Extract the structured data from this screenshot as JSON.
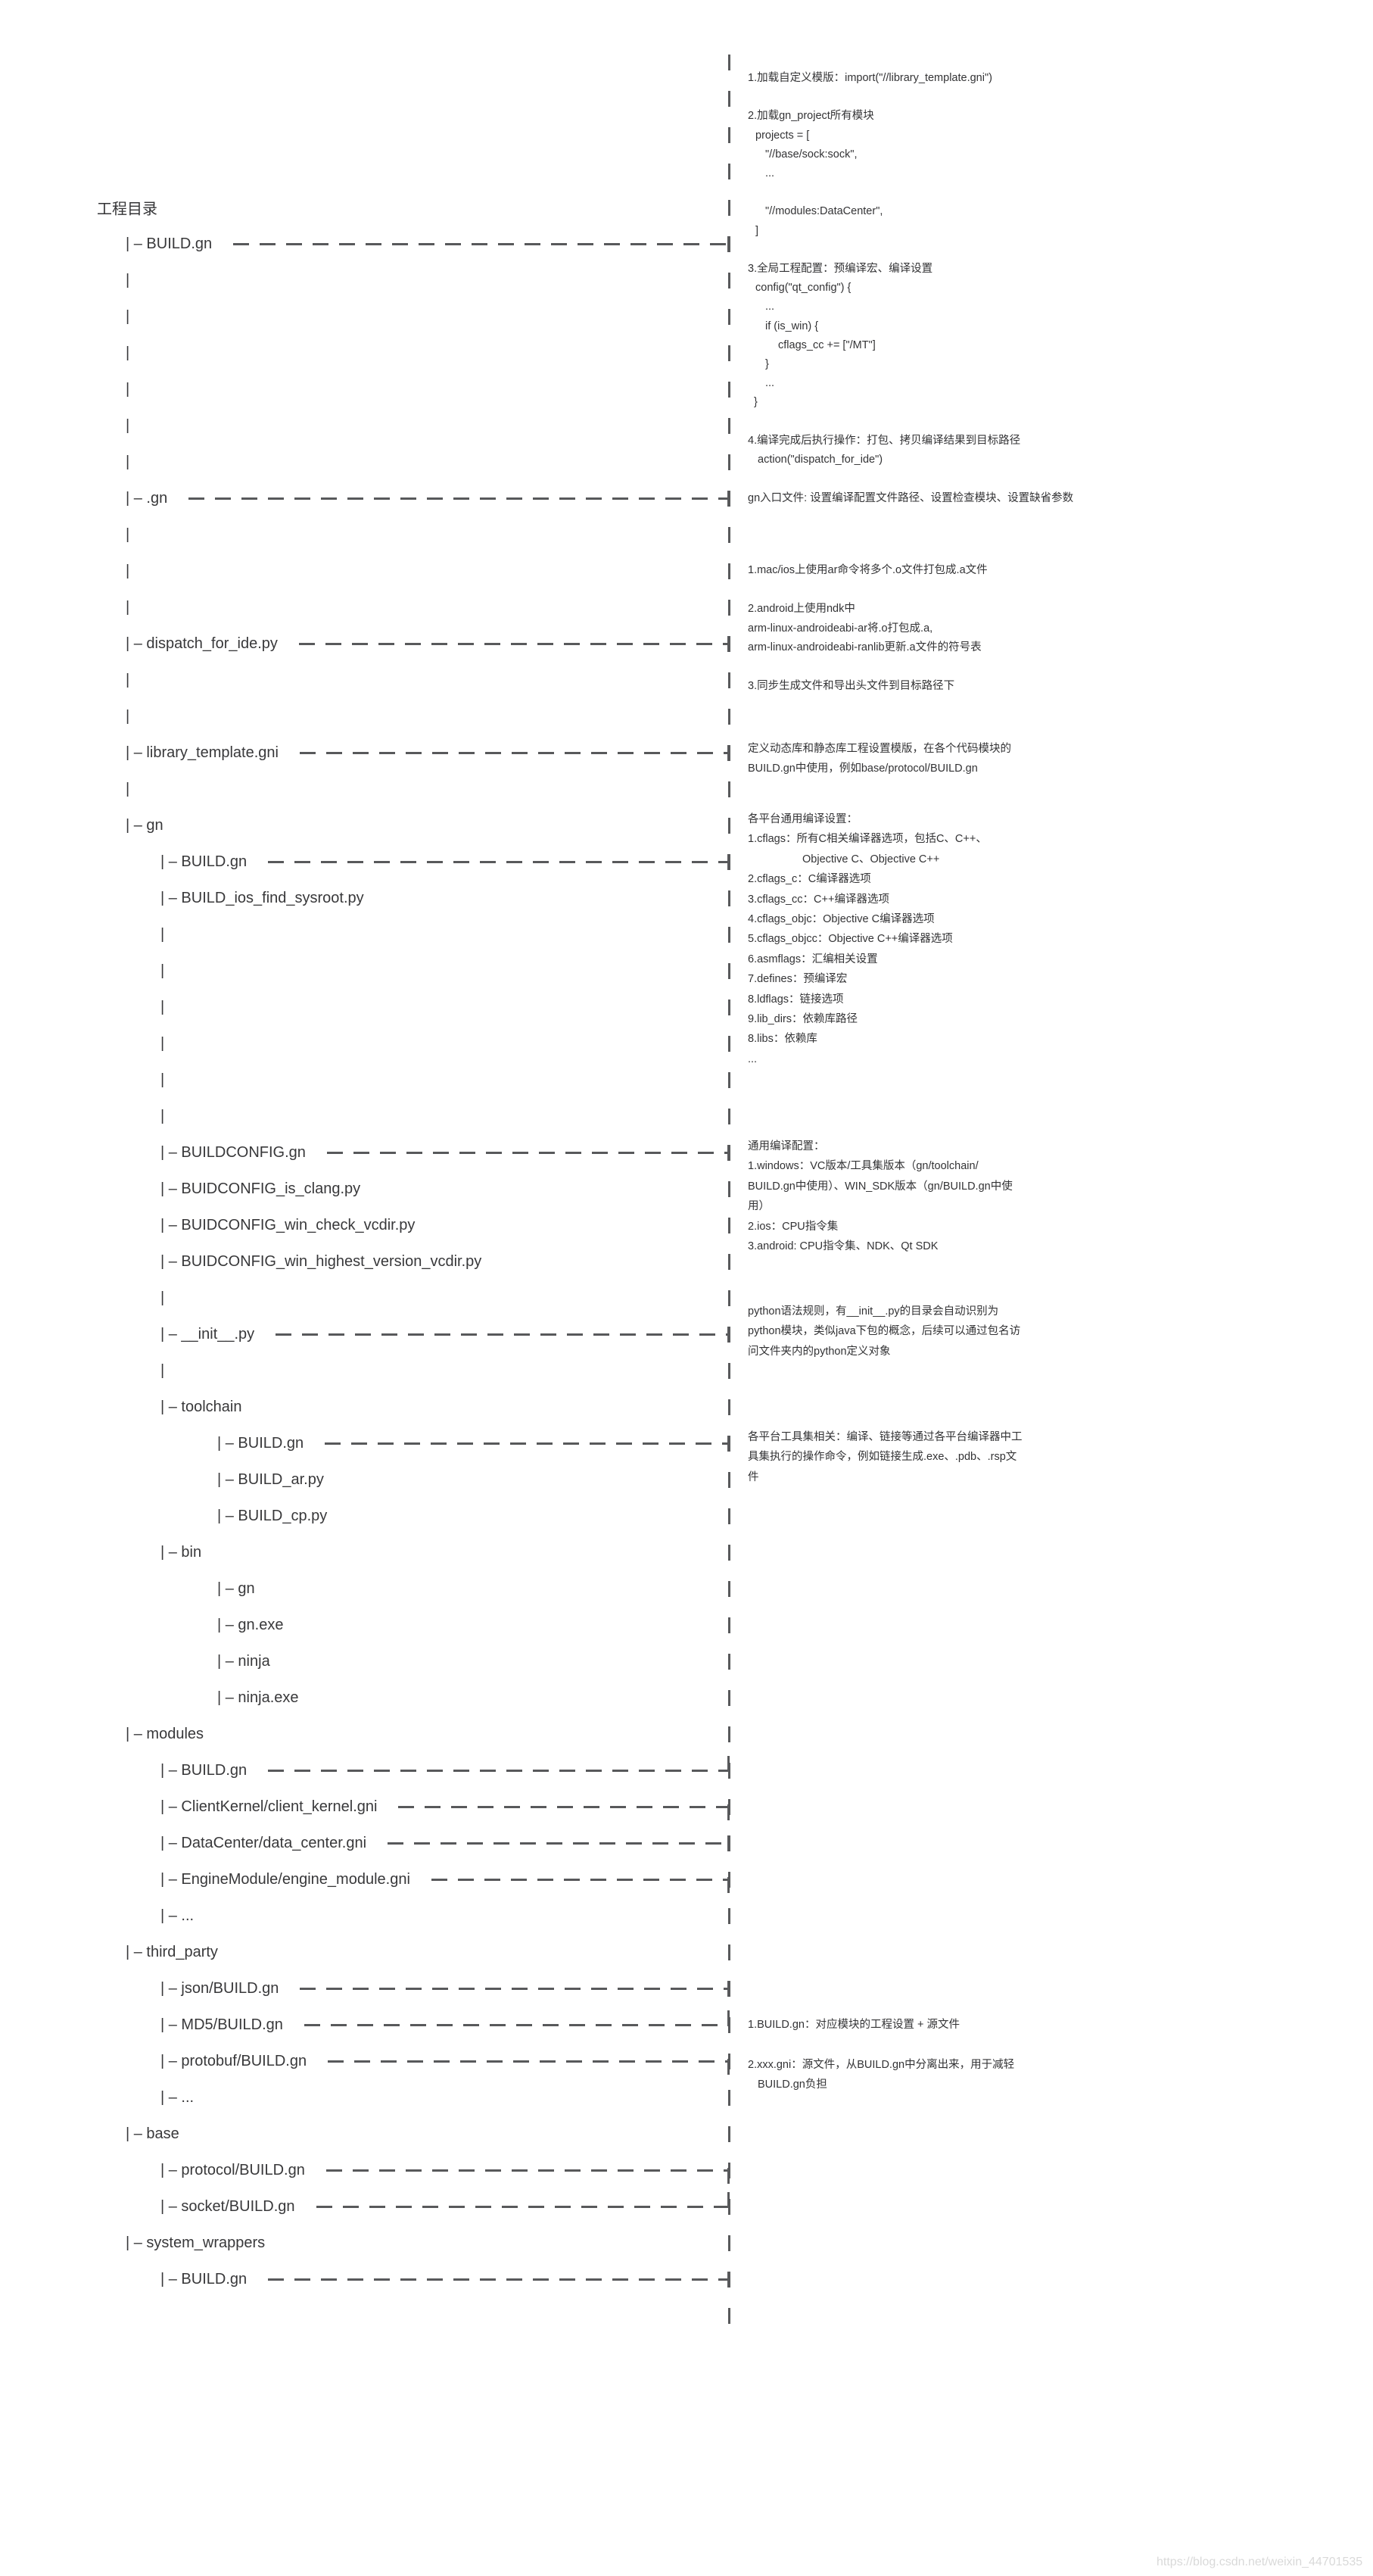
{
  "page": {
    "background": "#ffffff"
  },
  "colors": {
    "text": "#333335",
    "tree_text": "#38383a",
    "dash": "#58595b",
    "watermark": "#d9d9d9"
  },
  "watermark": {
    "text": "https://blog.csdn.net/weixin_44701535"
  },
  "tree": {
    "title": "工程目录",
    "rows": [
      {
        "kind": "title",
        "level": 0,
        "label": "工程目录"
      },
      {
        "kind": "item",
        "level": 1,
        "label": "BUILD.gn",
        "dash": true,
        "tick": "cross"
      },
      {
        "kind": "pipe",
        "level": 1
      },
      {
        "kind": "pipe",
        "level": 1
      },
      {
        "kind": "pipe",
        "level": 1
      },
      {
        "kind": "pipe",
        "level": 1
      },
      {
        "kind": "pipe",
        "level": 1
      },
      {
        "kind": "pipe",
        "level": 1
      },
      {
        "kind": "item",
        "level": 1,
        "label": ".gn",
        "dash": true,
        "tick": "cross"
      },
      {
        "kind": "pipe",
        "level": 1
      },
      {
        "kind": "pipe",
        "level": 1
      },
      {
        "kind": "pipe",
        "level": 1
      },
      {
        "kind": "item",
        "level": 1,
        "label": "dispatch_for_ide.py",
        "dash": true,
        "tick": "cross"
      },
      {
        "kind": "pipe",
        "level": 1
      },
      {
        "kind": "pipe",
        "level": 1
      },
      {
        "kind": "item",
        "level": 1,
        "label": "library_template.gni",
        "dash": true,
        "tick": "cross"
      },
      {
        "kind": "pipe",
        "level": 1
      },
      {
        "kind": "item",
        "level": 1,
        "label": "gn",
        "dash": false
      },
      {
        "kind": "item",
        "level": 2,
        "label": "BUILD.gn",
        "dash": true,
        "tick": "cross"
      },
      {
        "kind": "item",
        "level": 2,
        "label": "BUILD_ios_find_sysroot.py",
        "dash": false
      },
      {
        "kind": "pipe",
        "level": 2
      },
      {
        "kind": "pipe",
        "level": 2
      },
      {
        "kind": "pipe",
        "level": 2
      },
      {
        "kind": "pipe",
        "level": 2
      },
      {
        "kind": "pipe",
        "level": 2
      },
      {
        "kind": "pipe",
        "level": 2
      },
      {
        "kind": "item",
        "level": 2,
        "label": "BUILDCONFIG.gn",
        "dash": true,
        "tick": "cross"
      },
      {
        "kind": "item",
        "level": 2,
        "label": "BUIDCONFIG_is_clang.py",
        "dash": false
      },
      {
        "kind": "item",
        "level": 2,
        "label": "BUIDCONFIG_win_check_vcdir.py",
        "dash": false
      },
      {
        "kind": "item",
        "level": 2,
        "label": "BUIDCONFIG_win_highest_version_vcdir.py",
        "dash": false
      },
      {
        "kind": "pipe",
        "level": 2
      },
      {
        "kind": "item",
        "level": 2,
        "label": "__init__.py",
        "dash": true,
        "tick": "cross"
      },
      {
        "kind": "pipe",
        "level": 2
      },
      {
        "kind": "item",
        "level": 2,
        "label": "toolchain",
        "dash": false
      },
      {
        "kind": "item",
        "level": 3,
        "label": "BUILD.gn",
        "dash": true,
        "tick": "cross"
      },
      {
        "kind": "item",
        "level": 3,
        "label": "BUILD_ar.py",
        "dash": false
      },
      {
        "kind": "item",
        "level": 3,
        "label": "BUILD_cp.py",
        "dash": false
      },
      {
        "kind": "item",
        "level": 2,
        "label": "bin",
        "dash": false
      },
      {
        "kind": "item",
        "level": 3,
        "label": "gn",
        "dash": false
      },
      {
        "kind": "item",
        "level": 3,
        "label": "gn.exe",
        "dash": false
      },
      {
        "kind": "item",
        "level": 3,
        "label": "ninja",
        "dash": false
      },
      {
        "kind": "item",
        "level": 3,
        "label": "ninja.exe",
        "dash": false
      },
      {
        "kind": "item",
        "level": 1,
        "label": "modules",
        "dash": false
      },
      {
        "kind": "item",
        "level": 2,
        "label": "BUILD.gn",
        "dash": true,
        "tick": "up"
      },
      {
        "kind": "item",
        "level": 2,
        "label": "ClientKernel/client_kernel.gni",
        "dash": true,
        "tick": "down"
      },
      {
        "kind": "item",
        "level": 2,
        "label": "DataCenter/data_center.gni",
        "dash": true,
        "tick": "cross"
      },
      {
        "kind": "item",
        "level": 2,
        "label": "EngineModule/engine_module.gni",
        "dash": true,
        "tick": "down"
      },
      {
        "kind": "item",
        "level": 2,
        "label": "...",
        "dash": false
      },
      {
        "kind": "item",
        "level": 1,
        "label": "third_party",
        "dash": false
      },
      {
        "kind": "item",
        "level": 2,
        "label": "json/BUILD.gn",
        "dash": true,
        "tick": "cross"
      },
      {
        "kind": "item",
        "level": 2,
        "label": "MD5/BUILD.gn",
        "dash": true,
        "tick": "up"
      },
      {
        "kind": "item",
        "level": 2,
        "label": "protobuf/BUILD.gn",
        "dash": true,
        "tick": "down"
      },
      {
        "kind": "item",
        "level": 2,
        "label": "...",
        "dash": false
      },
      {
        "kind": "item",
        "level": 1,
        "label": "base",
        "dash": false
      },
      {
        "kind": "item",
        "level": 2,
        "label": "protocol/BUILD.gn",
        "dash": true,
        "tick": "down"
      },
      {
        "kind": "item",
        "level": 2,
        "label": "socket/BUILD.gn",
        "dash": true,
        "tick": "up"
      },
      {
        "kind": "item",
        "level": 1,
        "label": "system_wrappers",
        "dash": false
      },
      {
        "kind": "item",
        "level": 2,
        "label": "BUILD.gn",
        "dash": true,
        "tick": "cross"
      }
    ]
  },
  "annotations": {
    "blocks": [
      {
        "id": "root_build_gn",
        "lines": [
          [
            0,
            "1.加载自定义模版：import(\"//library_template.gni\")"
          ],
          [
            0,
            ""
          ],
          [
            0,
            "2.加载gn_project所有模块"
          ],
          [
            10,
            "projects = ["
          ],
          [
            23,
            "\"//base/sock:sock\","
          ],
          [
            23,
            "..."
          ],
          [
            0,
            ""
          ],
          [
            23,
            "\"//modules:DataCenter\","
          ],
          [
            10,
            "]"
          ],
          [
            0,
            ""
          ],
          [
            0,
            "3.全局工程配置：预编译宏、编译设置"
          ],
          [
            10,
            "config(\"qt_config\") {"
          ],
          [
            23,
            "..."
          ],
          [
            23,
            "if (is_win) {"
          ],
          [
            40,
            "cflags_cc += [\"/MT\"]"
          ],
          [
            23,
            "}"
          ],
          [
            23,
            "..."
          ],
          [
            8,
            "}"
          ],
          [
            0,
            ""
          ],
          [
            0,
            "4.编译完成后执行操作：打包、拷贝编译结果到目标路径"
          ],
          [
            13,
            "action(\"dispatch_for_ide\")"
          ]
        ]
      },
      {
        "id": "dot_gn",
        "lines": [
          [
            0,
            "gn入口文件: 设置编译配置文件路径、设置检查模块、设置缺省参数"
          ]
        ]
      },
      {
        "id": "dispatch_for_ide",
        "lines": [
          [
            0,
            "1.mac/ios上使用ar命令将多个.o文件打包成.a文件"
          ],
          [
            0,
            ""
          ],
          [
            0,
            "2.android上使用ndk中"
          ],
          [
            0,
            "arm-linux-androideabi-ar将.o打包成.a,"
          ],
          [
            0,
            "arm-linux-androideabi-ranlib更新.a文件的符号表"
          ],
          [
            0,
            ""
          ],
          [
            0,
            "3.同步生成文件和导出头文件到目标路径下"
          ]
        ]
      },
      {
        "id": "library_template",
        "lines": [
          [
            0,
            "定义动态库和静态库工程设置模版，在各个代码模块的"
          ],
          [
            0,
            "BUILD.gn中使用，例如base/protocol/BUILD.gn"
          ]
        ]
      },
      {
        "id": "gn_build_gn",
        "lines": [
          [
            0,
            "各平台通用编译设置："
          ],
          [
            0,
            "1.cflags：所有C相关编译器选项，包括C、C++、"
          ],
          [
            72,
            "Objective C、Objective C++"
          ],
          [
            0,
            "2.cflags_c：C编译器选项"
          ],
          [
            0,
            "3.cflags_cc：C++编译器选项"
          ],
          [
            0,
            "4.cflags_objc：Objective C编译器选项"
          ],
          [
            0,
            "5.cflags_objcc：Objective C++编译器选项"
          ],
          [
            0,
            "6.asmflags：汇编相关设置"
          ],
          [
            0,
            "7.defines：预编译宏"
          ],
          [
            0,
            "8.ldflags：链接选项"
          ],
          [
            0,
            "9.lib_dirs：依赖库路径"
          ],
          [
            0,
            "8.libs：依赖库"
          ],
          [
            0,
            "..."
          ]
        ]
      },
      {
        "id": "buildconfig",
        "lines": [
          [
            0,
            "通用编译配置："
          ],
          [
            0,
            "1.windows：VC版本/工具集版本（gn/toolchain/"
          ],
          [
            0,
            "BUILD.gn中使用）、WIN_SDK版本（gn/BUILD.gn中使"
          ],
          [
            0,
            "用）"
          ],
          [
            0,
            "2.ios：CPU指令集"
          ],
          [
            0,
            "3.android: CPU指令集、NDK、Qt SDK"
          ]
        ]
      },
      {
        "id": "init_py",
        "lines": [
          [
            0,
            "python语法规则，有__init__.py的目录会自动识别为"
          ],
          [
            0,
            "python模块，类似java下包的概念，后续可以通过包名访"
          ],
          [
            0,
            "问文件夹内的python定义对象"
          ]
        ]
      },
      {
        "id": "toolchain_build_gn",
        "lines": [
          [
            0,
            "各平台工具集相关：编译、链接等通过各平台编译器中工"
          ],
          [
            0,
            "具集执行的操作命令，例如链接生成.exe、.pdb、.rsp文"
          ],
          [
            0,
            "件"
          ]
        ]
      },
      {
        "id": "module_build_gn",
        "lines": [
          [
            0,
            "1.BUILD.gn：对应模块的工程设置 + 源文件"
          ],
          [
            0,
            ""
          ],
          [
            0,
            "2.xxx.gni：源文件，从BUILD.gn中分离出来，用于减轻"
          ],
          [
            13,
            "BUILD.gn负担"
          ]
        ]
      }
    ]
  }
}
